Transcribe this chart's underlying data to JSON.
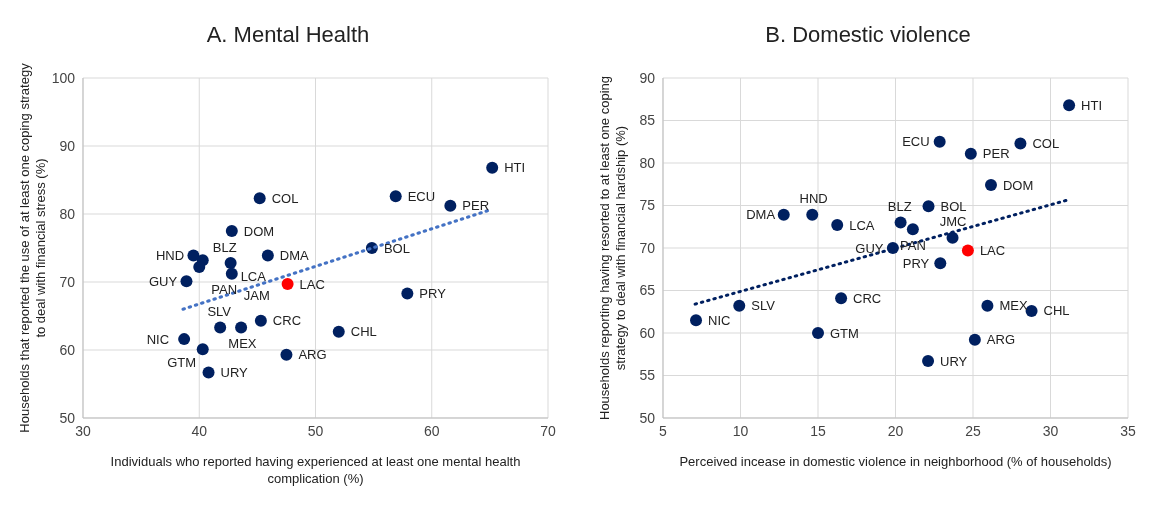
{
  "chart_data": [
    {
      "type": "scatter",
      "title": "A. Mental Health",
      "xlabel": "Individuals who reported having experienced at least one mental health complication (%)",
      "ylabel": "Households that reported the use of at least one coping strategy to deal with financial stress (%)",
      "xlim": [
        30,
        70
      ],
      "xticks": [
        30,
        40,
        50,
        60,
        70
      ],
      "ylim": [
        50,
        100
      ],
      "yticks": [
        50,
        60,
        70,
        80,
        90,
        100
      ],
      "grid": true,
      "legend": false,
      "marker": "circle",
      "series": [
        {
          "color": "#002060",
          "x": [
            65.2,
            45.2,
            56.9,
            61.6,
            42.8,
            54.85,
            45.9,
            39.5,
            40.3,
            40.0,
            42.7,
            42.8,
            38.9,
            57.9,
            45.3,
            41.8,
            43.6,
            52.0,
            38.7,
            40.3,
            47.5,
            40.8
          ],
          "values": [
            86.8,
            82.3,
            82.6,
            81.2,
            77.5,
            75.0,
            73.9,
            73.9,
            73.2,
            72.2,
            72.8,
            71.2,
            70.1,
            68.3,
            64.3,
            63.3,
            63.3,
            62.7,
            61.6,
            60.1,
            59.3,
            56.7
          ],
          "value_labels": [
            "HTI",
            "COL",
            "ECU",
            "PER",
            "DOM",
            "BOL",
            "DMA",
            "HND",
            "BLZ",
            "PAN",
            "LCA",
            "JAM",
            "GUY",
            "PRY",
            "CRC",
            "SLV",
            "MEX",
            "CHL",
            "NIC",
            "GTM",
            "ARG",
            "URY"
          ]
        },
        {
          "color": "#ff0000",
          "x": [
            47.6
          ],
          "values": [
            69.7
          ],
          "value_labels": [
            "LAC"
          ]
        },
        {
          "type": "line",
          "color": "#4472c4",
          "marker": "none",
          "line_style": "dotted",
          "x": [
            38.6,
            65.2
          ],
          "values": [
            66.0,
            80.7
          ]
        }
      ]
    },
    {
      "type": "scatter",
      "title": "B. Domestic violence",
      "xlabel": "Perceived incease in domestic violence in neighborhood (% of households)",
      "ylabel": "Households reporting having resorted to at least one coping strategy to deal with financial hardship (%)",
      "xlim": [
        5,
        35
      ],
      "xticks": [
        5,
        10,
        15,
        20,
        25,
        30,
        35
      ],
      "ylim": [
        50,
        90
      ],
      "yticks": [
        50,
        55,
        60,
        65,
        70,
        75,
        80,
        85,
        90
      ],
      "grid": true,
      "legend": false,
      "marker": "circle",
      "series": [
        {
          "color": "#002060",
          "x": [
            31.2,
            22.85,
            28.06,
            24.86,
            26.16,
            22.13,
            12.79,
            14.63,
            16.24,
            20.33,
            21.12,
            23.68,
            19.83,
            22.89,
            16.49,
            9.92,
            25.93,
            28.78,
            7.13,
            15.0,
            25.12,
            22.1
          ],
          "values": [
            86.8,
            82.5,
            82.3,
            81.1,
            77.4,
            74.9,
            73.9,
            73.9,
            72.7,
            73.0,
            72.2,
            71.2,
            70.0,
            68.2,
            64.1,
            63.2,
            63.2,
            62.6,
            61.5,
            60.0,
            59.2,
            56.7
          ],
          "value_labels": [
            "HTI",
            "ECU",
            "COL",
            "PER",
            "DOM",
            "BOL",
            "DMA",
            "HND",
            "LCA",
            "BLZ",
            "PAN",
            "JMC",
            "GUY",
            "PRY",
            "CRC",
            "SLV",
            "MEX",
            "CHL",
            "NIC",
            "GTM",
            "ARG",
            "URY"
          ]
        },
        {
          "color": "#ff0000",
          "x": [
            24.67
          ],
          "values": [
            69.7
          ],
          "value_labels": [
            "LAC"
          ]
        },
        {
          "type": "line",
          "color": "#002060",
          "marker": "none",
          "line_style": "dotted",
          "x": [
            7.07,
            31.2
          ],
          "values": [
            63.4,
            75.7
          ]
        }
      ]
    }
  ]
}
